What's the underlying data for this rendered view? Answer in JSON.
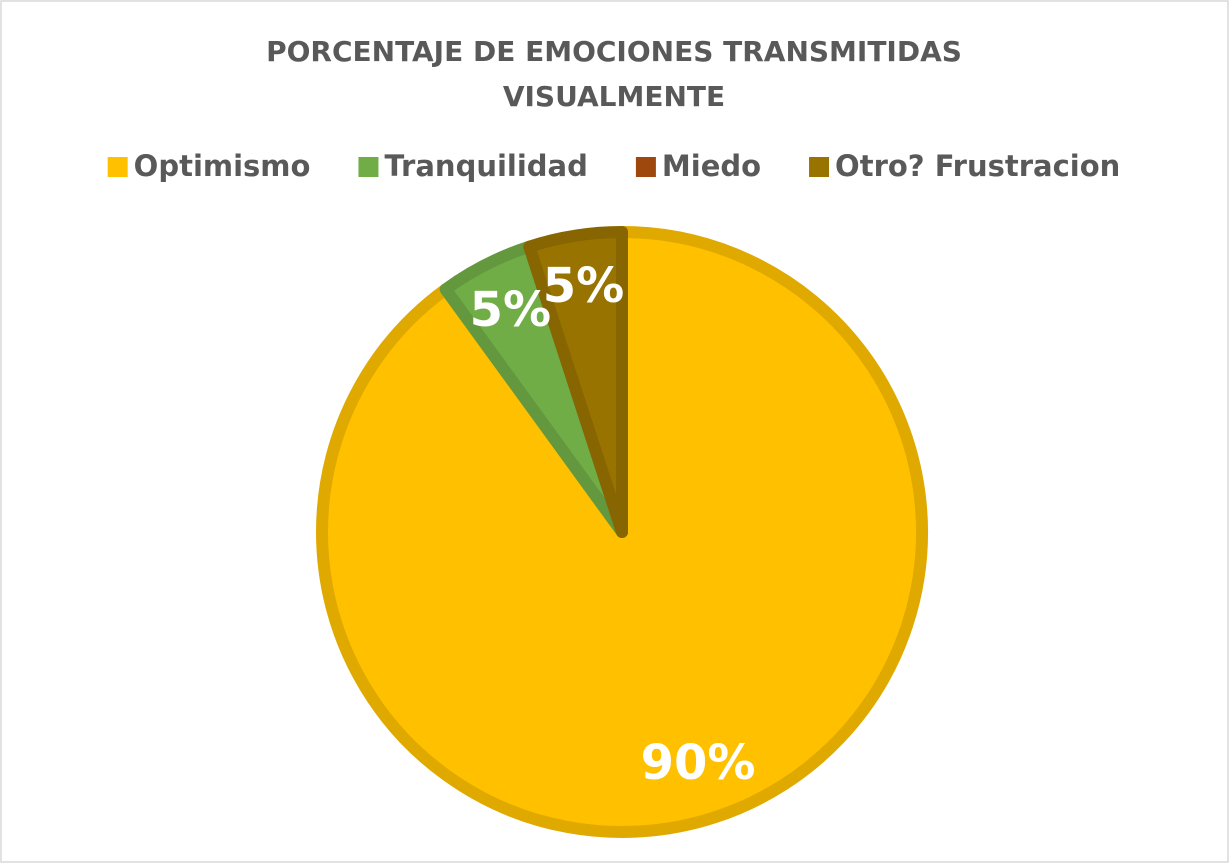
{
  "chart_data": {
    "type": "pie",
    "title": [
      "PORCENTAJE DE EMOCIONES TRANSMITIDAS",
      "VISUALMENTE"
    ],
    "categories": [
      "Optimismo",
      "Tranquilidad",
      "Miedo",
      "Otro? Frustracion"
    ],
    "values": [
      90,
      5,
      0,
      5
    ],
    "value_labels": [
      "90%",
      "5%",
      null,
      "5%"
    ],
    "colors": [
      "#ffc000",
      "#70ad47",
      "#9e480e",
      "#997300"
    ],
    "legend": "top"
  }
}
